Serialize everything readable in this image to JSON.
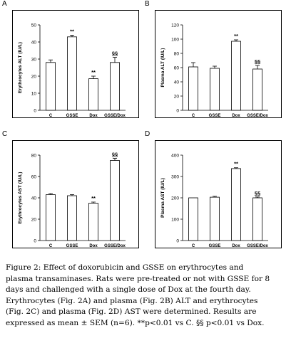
{
  "chart_data": [
    {
      "panel": "A",
      "type": "bar",
      "categories": [
        "C",
        "GSSE",
        "Dox",
        "GSSE/Dox"
      ],
      "values": [
        28,
        43,
        18.5,
        28
      ],
      "errors": [
        1.5,
        1,
        1.5,
        3
      ],
      "annotations": [
        "",
        "**",
        "**",
        "§§"
      ],
      "ylabel": "Erythrocytes ALT (IU/L)",
      "yticks": [
        0,
        10,
        20,
        30,
        40,
        50
      ],
      "ylim": [
        0,
        50
      ]
    },
    {
      "panel": "B",
      "type": "bar",
      "categories": [
        "C",
        "GSSE",
        "Dox",
        "GSSE/Dox"
      ],
      "values": [
        61,
        59,
        97,
        58
      ],
      "errors": [
        6,
        3,
        2,
        5
      ],
      "annotations": [
        "",
        "",
        "**",
        "§§"
      ],
      "ylabel": "Plasma ALT (IU/L)",
      "yticks": [
        0,
        20,
        40,
        60,
        80,
        100,
        120
      ],
      "ylim": [
        0,
        120
      ]
    },
    {
      "panel": "C",
      "type": "bar",
      "categories": [
        "C",
        "GSSE",
        "Dox",
        "GSSE/Dox"
      ],
      "values": [
        43,
        42,
        35,
        75
      ],
      "errors": [
        1,
        1,
        1,
        2
      ],
      "annotations": [
        "",
        "",
        "**",
        "§§"
      ],
      "ylabel": "Erythrocytes AST (IU/L)",
      "yticks": [
        0,
        20,
        40,
        60,
        80
      ],
      "ylim": [
        0,
        80
      ]
    },
    {
      "panel": "D",
      "type": "bar",
      "categories": [
        "C",
        "GSSE",
        "Dox",
        "GSSE/Dox"
      ],
      "values": [
        200,
        203,
        337,
        200
      ],
      "errors": [
        0,
        4,
        4,
        4
      ],
      "annotations": [
        "",
        "",
        "**",
        "§§"
      ],
      "ylabel": "Plasma AST (IU/L)",
      "yticks": [
        0,
        100,
        200,
        300,
        400
      ],
      "ylim": [
        0,
        400
      ]
    }
  ],
  "caption": {
    "lines": [
      "Figure 2: Effect of doxorubicin and GSSE on erythrocytes and",
      "plasma transaminases. Rats were pre-treated or not with GSSE for 8",
      "days and challenged with a single dose of Dox at the fourth day.",
      "Erythrocytes (Fig. 2A) and plasma (Fig. 2B) ALT and erythrocytes",
      "(Fig. 2C) and plasma (Fig. 2D) AST were determined. Results are",
      "expressed as mean ± SEM (n=6). **p<0.01 vs C. §§ p<0.01 vs Dox."
    ]
  }
}
